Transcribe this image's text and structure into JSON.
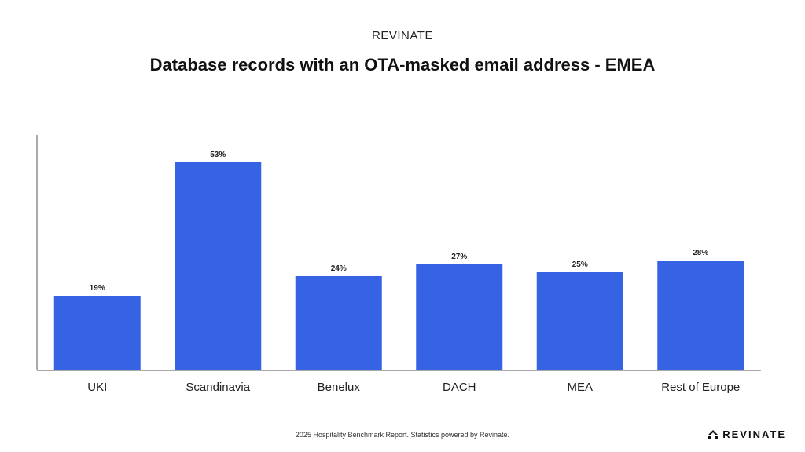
{
  "header": {
    "brand": "REVINATE"
  },
  "chart_data": {
    "type": "bar",
    "title": "Database records with an OTA-masked email address - EMEA",
    "categories": [
      "UKI",
      "Scandinavia",
      "Benelux",
      "DACH",
      "MEA",
      "Rest of Europe"
    ],
    "values": [
      19,
      53,
      24,
      27,
      25,
      28
    ],
    "value_labels": [
      "19%",
      "53%",
      "24%",
      "27%",
      "25%",
      "28%"
    ],
    "ylim": [
      0,
      60
    ],
    "grid": false,
    "bar_color": "#3563e3"
  },
  "footer": {
    "note": "2025 Hospitality Benchmark Report. Statistics powered by Revinate.",
    "logo_text": "REVINATE",
    "logo_icon": "revinate-logo-icon"
  }
}
